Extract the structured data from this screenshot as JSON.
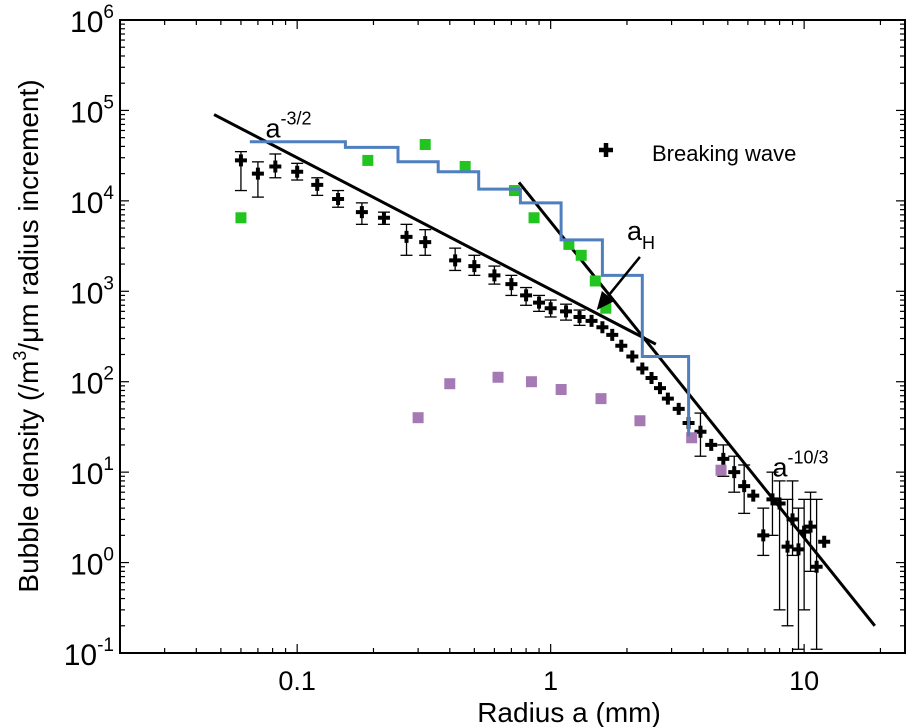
{
  "chart_data": {
    "type": "scatter",
    "xlabel": "Radius a (mm)",
    "ylabel_parts": [
      "Bubble density (/m",
      "3",
      "/",
      "μ",
      "m radius increment)"
    ],
    "xscale": "log",
    "yscale": "log",
    "xlim": [
      0.02,
      25
    ],
    "ylim": [
      0.1,
      1000000
    ],
    "x_ticks": [
      {
        "value": 0.1,
        "label": "0.1"
      },
      {
        "value": 1,
        "label": "1"
      },
      {
        "value": 10,
        "label": "10"
      }
    ],
    "y_ticks": [
      {
        "value": 1000000,
        "base": "10",
        "exp": "6"
      },
      {
        "value": 100000,
        "base": "10",
        "exp": "5"
      },
      {
        "value": 10000,
        "base": "10",
        "exp": "4"
      },
      {
        "value": 1000,
        "base": "10",
        "exp": "3"
      },
      {
        "value": 100,
        "base": "10",
        "exp": "2"
      },
      {
        "value": 10,
        "base": "10",
        "exp": "1"
      },
      {
        "value": 1,
        "base": "10",
        "exp": "0"
      },
      {
        "value": 0.1,
        "base": "10",
        "exp": "-1"
      }
    ],
    "grid": false,
    "legend": {
      "position": "top-right",
      "entries": [
        {
          "label": "Breaking wave",
          "color": "#000000"
        }
      ]
    },
    "annotations": [
      {
        "base": "a",
        "sup": "-3/2",
        "x": 0.075,
        "y": 50000
      },
      {
        "base": "a",
        "sub": "H",
        "x": 2.0,
        "y": 3700
      },
      {
        "base": "a",
        "sup": "-10/3",
        "x": 7.5,
        "y": 9
      },
      {
        "type": "arrow",
        "from": [
          2.25,
          2400
        ],
        "to": [
          1.52,
          620
        ]
      }
    ],
    "fit_lines": [
      {
        "name_parts": {
          "base": "a",
          "sup": "-3/2"
        },
        "x": [
          0.047,
          2.6
        ],
        "y": [
          90000,
          260
        ]
      },
      {
        "name_parts": {
          "base": "a",
          "sup": "-10/3"
        },
        "x": [
          0.75,
          19
        ],
        "y": [
          16000,
          0.2
        ]
      }
    ],
    "series": [
      {
        "name": "Breaking wave",
        "color": "#000000",
        "marker": "plus",
        "points": [
          {
            "x": 0.06,
            "y": 28000,
            "lo": 13000,
            "hi": 35000
          },
          {
            "x": 0.07,
            "y": 20000,
            "lo": 11000,
            "hi": 27000
          },
          {
            "x": 0.082,
            "y": 24000,
            "lo": 18000,
            "hi": 33000
          },
          {
            "x": 0.1,
            "y": 21000,
            "lo": 17000,
            "hi": 26000
          },
          {
            "x": 0.12,
            "y": 15000,
            "lo": 11500,
            "hi": 18000
          },
          {
            "x": 0.145,
            "y": 10500,
            "lo": 8500,
            "hi": 13000
          },
          {
            "x": 0.18,
            "y": 7500,
            "lo": 5500,
            "hi": 9500
          },
          {
            "x": 0.22,
            "y": 6500,
            "lo": 5500,
            "hi": 7500
          },
          {
            "x": 0.27,
            "y": 4000,
            "lo": 2500,
            "hi": 5500
          },
          {
            "x": 0.32,
            "y": 3500,
            "lo": 2500,
            "hi": 4800
          },
          {
            "x": 0.42,
            "y": 2200,
            "lo": 1700,
            "hi": 3000
          },
          {
            "x": 0.5,
            "y": 1900,
            "lo": 1500,
            "hi": 2500
          },
          {
            "x": 0.6,
            "y": 1500,
            "lo": 1200,
            "hi": 1900
          },
          {
            "x": 0.7,
            "y": 1200,
            "lo": 900,
            "hi": 1500
          },
          {
            "x": 0.8,
            "y": 900,
            "lo": 700,
            "hi": 1100
          },
          {
            "x": 0.9,
            "y": 750,
            "lo": 600,
            "hi": 900
          },
          {
            "x": 1.0,
            "y": 650,
            "lo": 520,
            "hi": 800
          },
          {
            "x": 1.15,
            "y": 600,
            "lo": 480,
            "hi": 720
          },
          {
            "x": 1.3,
            "y": 520,
            "lo": 420,
            "hi": 620
          },
          {
            "x": 1.45,
            "y": 470
          },
          {
            "x": 1.6,
            "y": 400
          },
          {
            "x": 1.75,
            "y": 330
          },
          {
            "x": 1.9,
            "y": 250
          },
          {
            "x": 2.1,
            "y": 190
          },
          {
            "x": 2.3,
            "y": 140
          },
          {
            "x": 2.5,
            "y": 110
          },
          {
            "x": 2.7,
            "y": 85
          },
          {
            "x": 2.9,
            "y": 65
          },
          {
            "x": 3.2,
            "y": 50
          },
          {
            "x": 3.5,
            "y": 35
          },
          {
            "x": 3.9,
            "y": 28,
            "lo": 15,
            "hi": 45
          },
          {
            "x": 4.3,
            "y": 20
          },
          {
            "x": 4.8,
            "y": 14,
            "lo": 9,
            "hi": 20
          },
          {
            "x": 5.3,
            "y": 10,
            "lo": 6,
            "hi": 15
          },
          {
            "x": 5.8,
            "y": 7,
            "lo": 3.5,
            "hi": 12
          },
          {
            "x": 6.3,
            "y": 5.5
          },
          {
            "x": 6.9,
            "y": 2.0,
            "lo": 1.2,
            "hi": 4
          },
          {
            "x": 7.5,
            "y": 5,
            "lo": 2,
            "hi": 10
          },
          {
            "x": 8.0,
            "y": 4.5,
            "lo": 0.3,
            "hi": 8
          },
          {
            "x": 8.6,
            "y": 1.5,
            "lo": 0.2,
            "hi": 5
          },
          {
            "x": 9.0,
            "y": 3.0,
            "lo": 1.2,
            "hi": 8
          },
          {
            "x": 9.5,
            "y": 1.4,
            "lo": 0.11,
            "hi": 4
          },
          {
            "x": 10.0,
            "y": 2.2,
            "lo": 0.3,
            "hi": 5
          },
          {
            "x": 10.6,
            "y": 2.5,
            "lo": 0.8,
            "hi": 6
          },
          {
            "x": 11.2,
            "y": 0.9,
            "lo": 0.11,
            "hi": 5
          },
          {
            "x": 12.0,
            "y": 1.7
          }
        ]
      },
      {
        "name": "",
        "color": "#22c41f",
        "marker": "square",
        "points": [
          {
            "x": 0.06,
            "y": 6500
          },
          {
            "x": 0.19,
            "y": 28000
          },
          {
            "x": 0.32,
            "y": 42000
          },
          {
            "x": 0.46,
            "y": 24000
          },
          {
            "x": 0.72,
            "y": 13000
          },
          {
            "x": 0.86,
            "y": 6500
          },
          {
            "x": 1.18,
            "y": 3300
          },
          {
            "x": 1.32,
            "y": 2500
          },
          {
            "x": 1.5,
            "y": 1300
          },
          {
            "x": 1.65,
            "y": 650
          }
        ]
      },
      {
        "name": "",
        "color": "#a57ab4",
        "marker": "square",
        "points": [
          {
            "x": 0.3,
            "y": 40
          },
          {
            "x": 0.4,
            "y": 95
          },
          {
            "x": 0.62,
            "y": 112
          },
          {
            "x": 0.84,
            "y": 100
          },
          {
            "x": 1.1,
            "y": 82
          },
          {
            "x": 1.58,
            "y": 65
          },
          {
            "x": 2.25,
            "y": 37
          },
          {
            "x": 3.6,
            "y": 24
          },
          {
            "x": 4.7,
            "y": 10.5
          }
        ]
      },
      {
        "name": "",
        "color": "#4f7fbf",
        "type": "step",
        "points": [
          {
            "x": 0.065,
            "y": 45000
          },
          {
            "x": 0.155,
            "y": 45000
          },
          {
            "x": 0.155,
            "y": 39000
          },
          {
            "x": 0.25,
            "y": 39000
          },
          {
            "x": 0.25,
            "y": 27000
          },
          {
            "x": 0.36,
            "y": 27000
          },
          {
            "x": 0.36,
            "y": 21000
          },
          {
            "x": 0.52,
            "y": 21000
          },
          {
            "x": 0.52,
            "y": 13500
          },
          {
            "x": 0.76,
            "y": 13500
          },
          {
            "x": 0.76,
            "y": 9500
          },
          {
            "x": 1.1,
            "y": 9500
          },
          {
            "x": 1.1,
            "y": 3700
          },
          {
            "x": 1.6,
            "y": 3700
          },
          {
            "x": 1.6,
            "y": 1500
          },
          {
            "x": 2.3,
            "y": 1500
          },
          {
            "x": 2.3,
            "y": 190
          },
          {
            "x": 3.5,
            "y": 190
          },
          {
            "x": 3.5,
            "y": 25
          }
        ]
      }
    ]
  }
}
